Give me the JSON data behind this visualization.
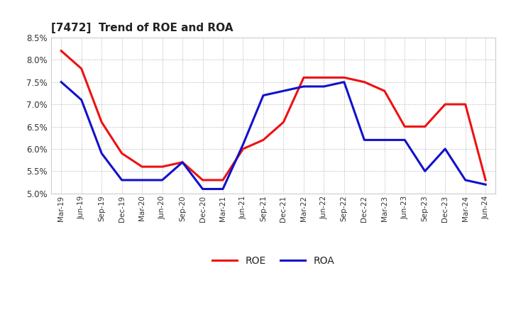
{
  "title": "[7472]  Trend of ROE and ROA",
  "title_fontsize": 11,
  "ylim": [
    0.05,
    0.085
  ],
  "yticks": [
    0.05,
    0.055,
    0.06,
    0.065,
    0.07,
    0.075,
    0.08,
    0.085
  ],
  "background_color": "#ffffff",
  "plot_bg_color": "#ffffff",
  "grid_color": "#999999",
  "roe_color": "#ee1111",
  "roa_color": "#1111cc",
  "line_width": 2.2,
  "dates": [
    "Mar-19",
    "Jun-19",
    "Sep-19",
    "Dec-19",
    "Mar-20",
    "Jun-20",
    "Sep-20",
    "Dec-20",
    "Mar-21",
    "Jun-21",
    "Sep-21",
    "Dec-21",
    "Mar-22",
    "Jun-22",
    "Sep-22",
    "Dec-22",
    "Mar-23",
    "Jun-23",
    "Sep-23",
    "Dec-23",
    "Mar-24",
    "Jun-24"
  ],
  "roe": [
    0.082,
    0.078,
    0.066,
    0.059,
    0.056,
    0.056,
    0.057,
    0.053,
    0.053,
    0.06,
    0.062,
    0.066,
    0.076,
    0.076,
    0.076,
    0.075,
    0.073,
    0.065,
    0.065,
    0.07,
    0.07,
    0.053
  ],
  "roa": [
    0.075,
    0.071,
    0.059,
    0.053,
    0.053,
    0.053,
    0.057,
    0.051,
    0.051,
    0.061,
    0.072,
    0.073,
    0.074,
    0.074,
    0.075,
    0.062,
    0.062,
    0.062,
    0.055,
    0.06,
    0.053,
    0.052
  ],
  "legend_roe": "ROE",
  "legend_roa": "ROA"
}
